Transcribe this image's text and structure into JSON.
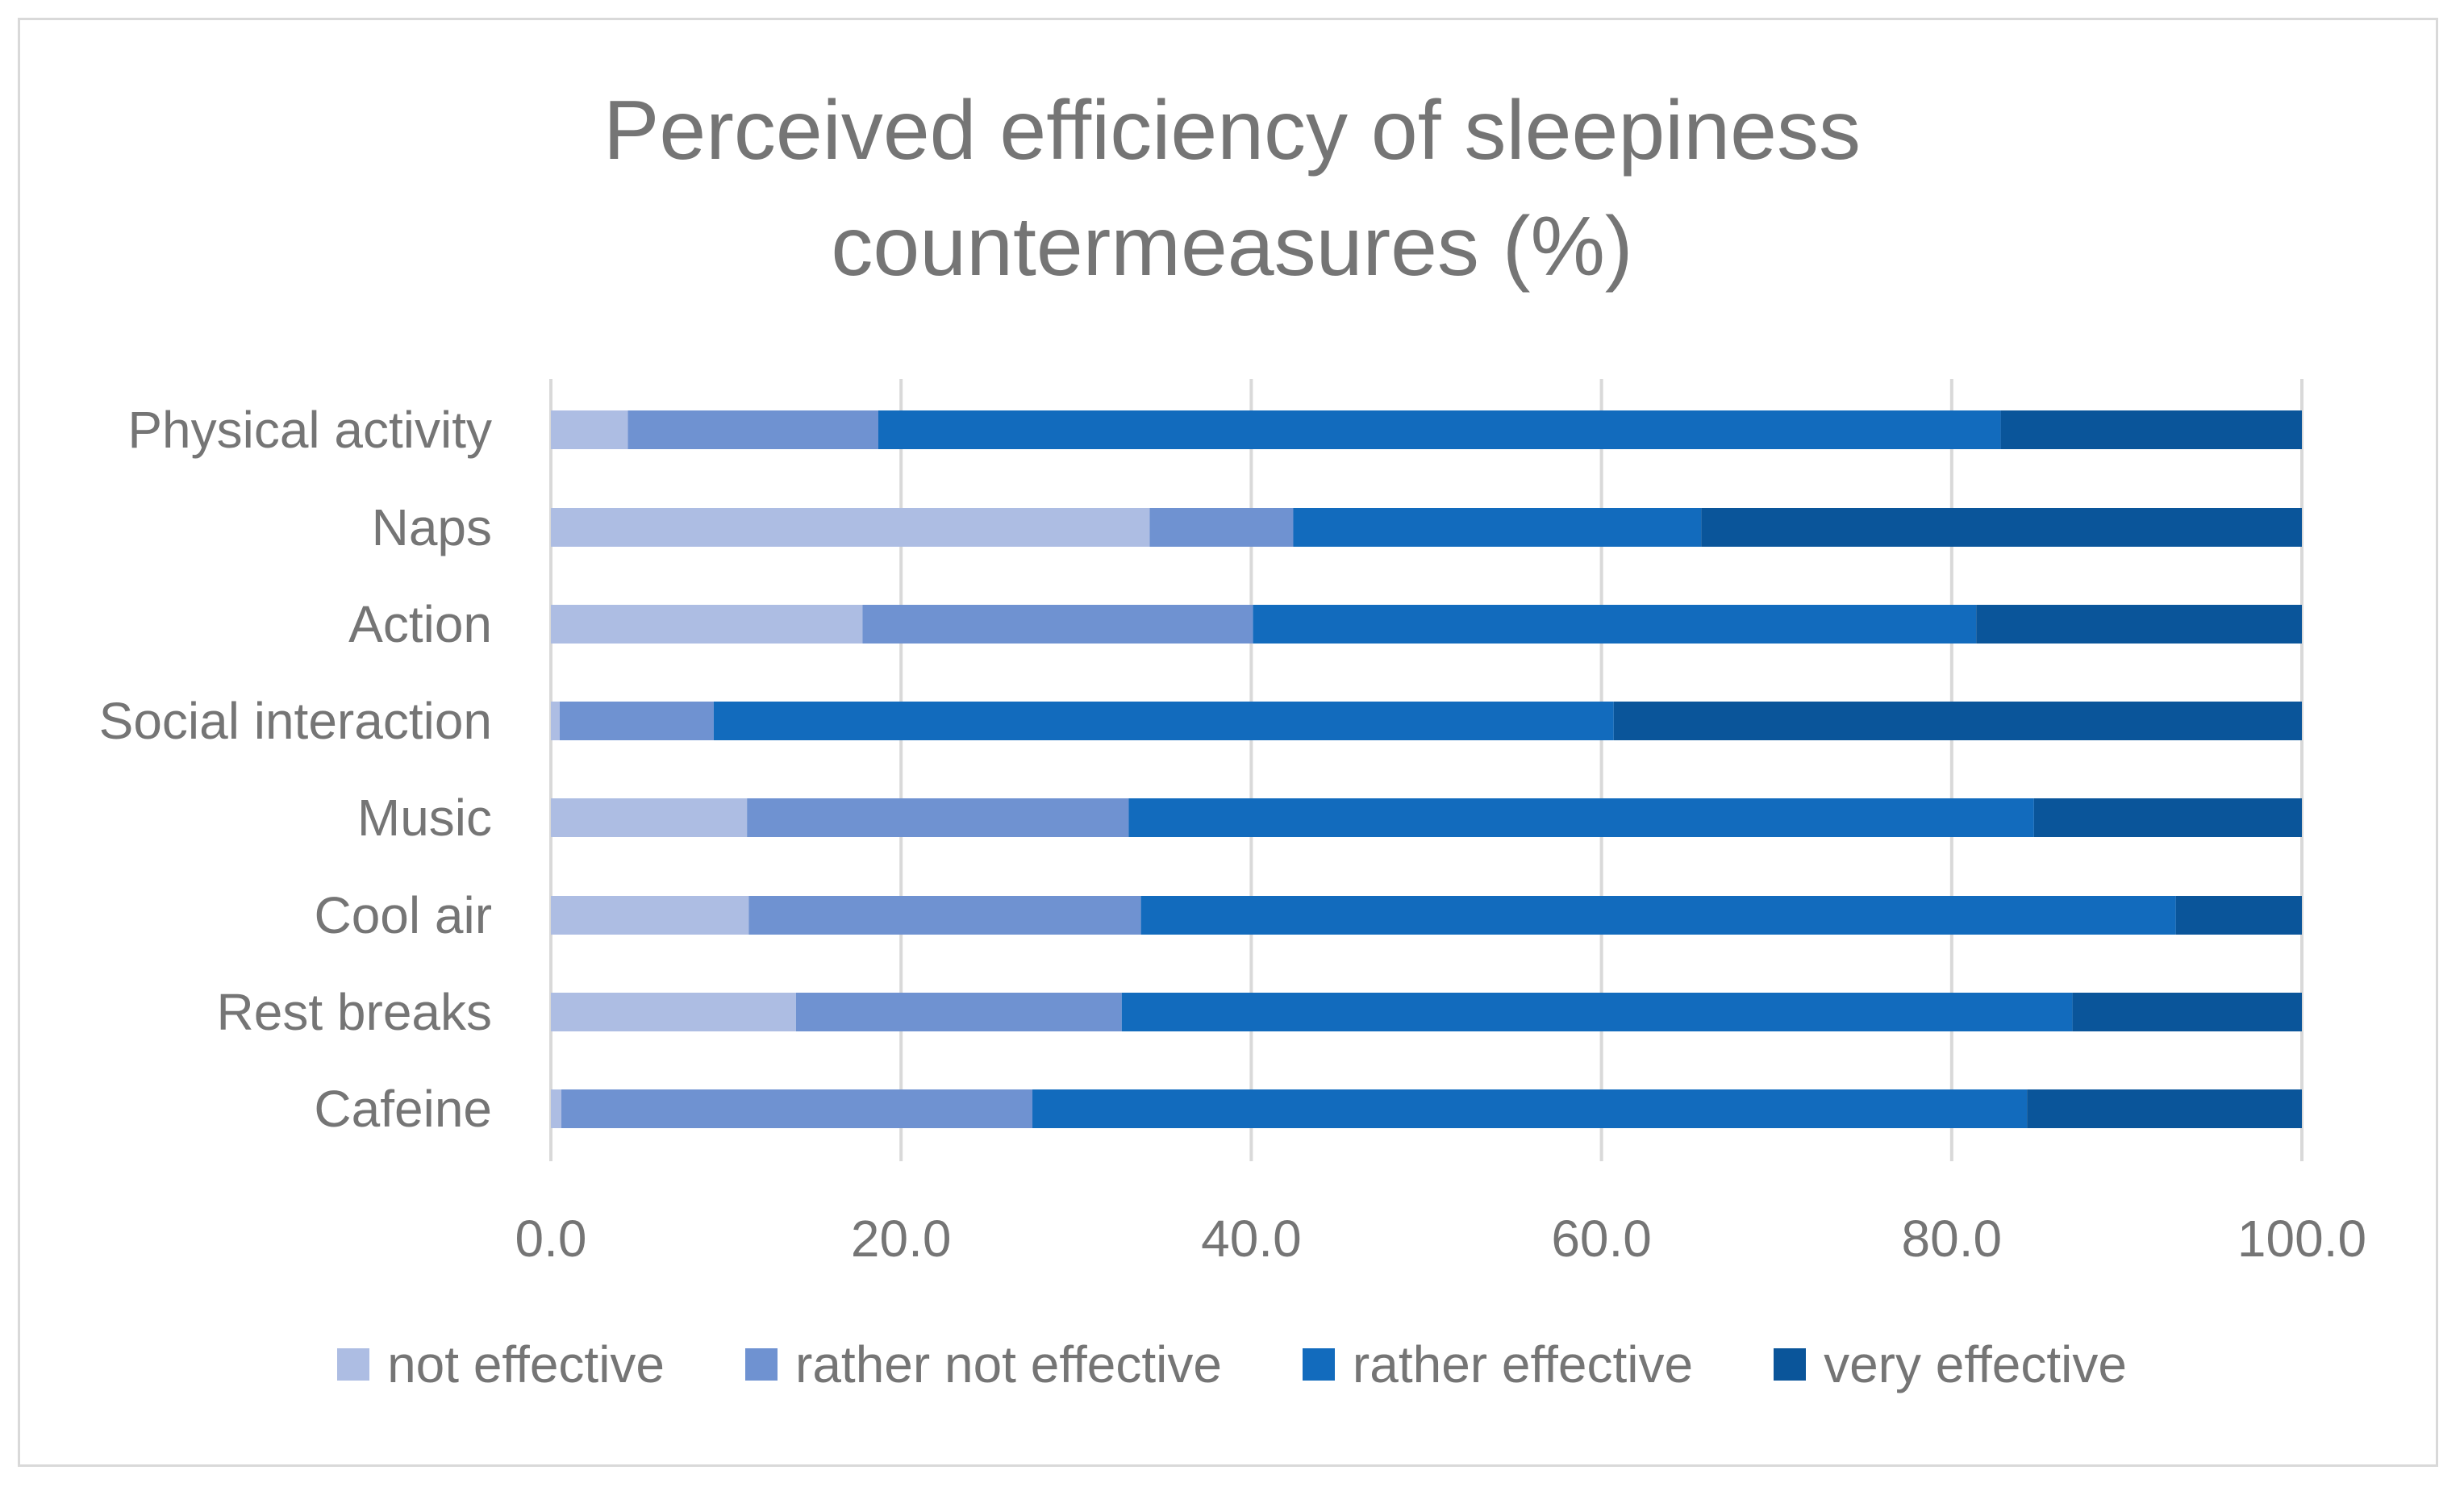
{
  "chart_data": {
    "type": "bar",
    "orientation": "horizontal",
    "stacked": true,
    "title": "Perceived efficiency of sleepiness countermeasures (%)",
    "title_lines": [
      "Perceived efficiency of sleepiness",
      "countermeasures (%)"
    ],
    "categories": [
      "Physical activity",
      "Naps",
      "Action",
      "Social interaction",
      "Music",
      "Cool air",
      "Rest breaks",
      "Cafeine"
    ],
    "series": [
      {
        "name": "not effective",
        "color": "#adbde3",
        "values": [
          4.4,
          34.2,
          17.8,
          0.5,
          11.2,
          11.3,
          14.0,
          0.6
        ]
      },
      {
        "name": "rather not effective",
        "color": "#6f92d1",
        "values": [
          14.3,
          8.2,
          22.3,
          8.8,
          21.8,
          22.4,
          18.6,
          26.9
        ]
      },
      {
        "name": "rather effective",
        "color": "#126bbd",
        "values": [
          64.1,
          23.3,
          41.3,
          51.4,
          51.7,
          59.1,
          54.3,
          56.8
        ]
      },
      {
        "name": "very effective",
        "color": "#0a559a",
        "values": [
          17.2,
          34.3,
          18.6,
          39.3,
          15.3,
          7.2,
          13.1,
          15.7
        ]
      }
    ],
    "xlim": [
      0,
      100
    ],
    "xticks": [
      "0.0",
      "20.0",
      "40.0",
      "60.0",
      "80.0",
      "100.0"
    ],
    "xlabel": "",
    "ylabel": "",
    "grid": true,
    "legend_position": "bottom"
  },
  "colors": {
    "text": "#757575",
    "grid": "#d9d9d9",
    "border": "#d9d9d9"
  }
}
